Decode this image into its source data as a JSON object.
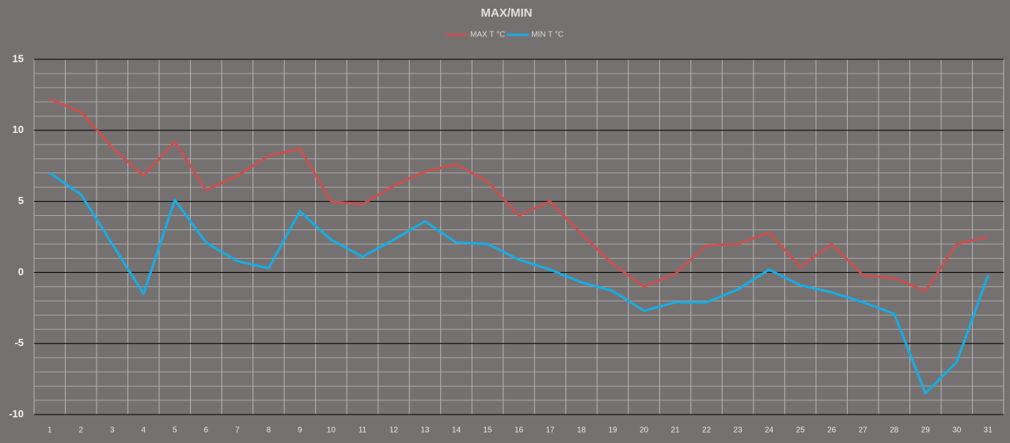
{
  "chart_data": {
    "type": "line",
    "title": "MAX/MIN",
    "categories": [
      "1",
      "2",
      "3",
      "4",
      "5",
      "6",
      "7",
      "8",
      "9",
      "10",
      "11",
      "12",
      "13",
      "14",
      "15",
      "16",
      "17",
      "18",
      "19",
      "20",
      "21",
      "22",
      "23",
      "24",
      "25",
      "26",
      "27",
      "28",
      "29",
      "30",
      "31"
    ],
    "series": [
      {
        "name": "MAX T °C",
        "color": "#c9504f",
        "values": [
          12.2,
          11.3,
          8.8,
          6.8,
          9.2,
          5.8,
          6.8,
          8.2,
          8.7,
          5.0,
          4.8,
          6.1,
          7.1,
          7.6,
          6.4,
          4.0,
          5.0,
          2.7,
          0.6,
          -1.0,
          -0.1,
          1.9,
          2.0,
          2.8,
          0.4,
          2.0,
          -0.2,
          -0.4,
          -1.3,
          2.0,
          2.5
        ]
      },
      {
        "name": "MIN T °C",
        "color": "#14aee8",
        "values": [
          7.0,
          5.5,
          2.0,
          -1.5,
          5.1,
          2.1,
          0.8,
          0.3,
          4.3,
          2.3,
          1.1,
          2.3,
          3.6,
          2.1,
          2.0,
          0.9,
          0.2,
          -0.7,
          -1.3,
          -2.7,
          -2.1,
          -2.1,
          -1.2,
          0.2,
          -0.9,
          -1.4,
          -2.1,
          -2.9,
          -8.5,
          -6.3,
          -0.2
        ]
      }
    ],
    "ylim": [
      -10,
      15
    ],
    "yticks": [
      -10,
      -5,
      0,
      5,
      10,
      15
    ],
    "grid": true,
    "legend": "top"
  }
}
